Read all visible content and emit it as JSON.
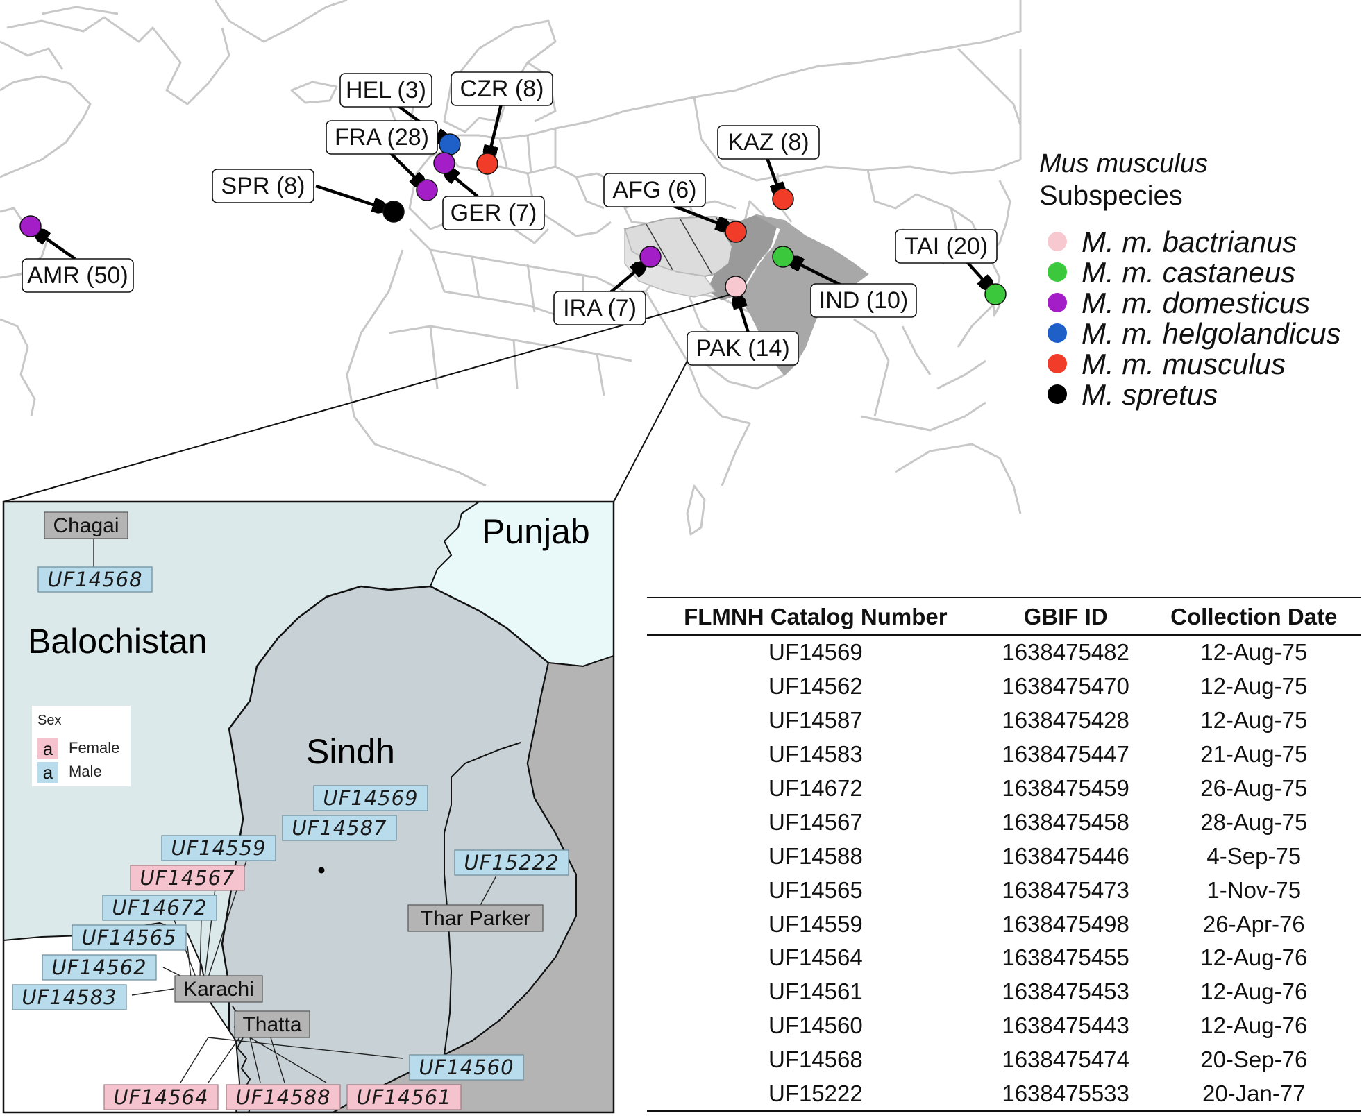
{
  "legend": {
    "title_italic": "Mus musculus",
    "title": "Subspecies",
    "items": [
      {
        "label": "M. m. bactrianus",
        "color": "#f8c8d0"
      },
      {
        "label": "M. m. castaneus",
        "color": "#3cc83c"
      },
      {
        "label": "M. m. domesticus",
        "color": "#a41ec8"
      },
      {
        "label": "M. m. helgolandicus",
        "color": "#1f5fc8"
      },
      {
        "label": "M. m. musculus",
        "color": "#f03c28"
      },
      {
        "label": "M. spretus",
        "color": "#000000"
      }
    ]
  },
  "sites": [
    {
      "label": "HEL (3)",
      "subspecies": "M. m. helgolandicus"
    },
    {
      "label": "CZR (8)",
      "subspecies": "M. m. musculus"
    },
    {
      "label": "FRA (28)",
      "subspecies": "M. m. domesticus"
    },
    {
      "label": "KAZ (8)",
      "subspecies": "M. m. musculus"
    },
    {
      "label": "SPR (8)",
      "subspecies": "M. spretus"
    },
    {
      "label": "GER (7)",
      "subspecies": "M. m. domesticus"
    },
    {
      "label": "AFG (6)",
      "subspecies": "M. m. musculus"
    },
    {
      "label": "TAI (20)",
      "subspecies": "M. m. castaneus"
    },
    {
      "label": "AMR (50)",
      "subspecies": "M. m. domesticus"
    },
    {
      "label": "IRA (7)",
      "subspecies": "M. m. domesticus"
    },
    {
      "label": "IND (10)",
      "subspecies": "M. m. castaneus"
    },
    {
      "label": "PAK (14)",
      "subspecies": "M. m. bactrianus"
    }
  ],
  "inset": {
    "provinces": [
      "Punjab",
      "Balochistan",
      "Sindh"
    ],
    "sex_legend": {
      "title": "Sex",
      "glyph": "a",
      "items": [
        {
          "label": "Female",
          "color": "#f4c3cd"
        },
        {
          "label": "Male",
          "color": "#b8dcec"
        }
      ]
    },
    "districts": [
      "Chagai",
      "Karachi",
      "Thatta",
      "Thar Parker"
    ],
    "specimens": [
      {
        "id": "UF14568",
        "sex": "Male"
      },
      {
        "id": "UF14569",
        "sex": "Male"
      },
      {
        "id": "UF14587",
        "sex": "Male"
      },
      {
        "id": "UF14559",
        "sex": "Male"
      },
      {
        "id": "UF14567",
        "sex": "Female"
      },
      {
        "id": "UF15222",
        "sex": "Male"
      },
      {
        "id": "UF14672",
        "sex": "Male"
      },
      {
        "id": "UF14565",
        "sex": "Male"
      },
      {
        "id": "UF14562",
        "sex": "Male"
      },
      {
        "id": "UF14583",
        "sex": "Male"
      },
      {
        "id": "UF14560",
        "sex": "Male"
      },
      {
        "id": "UF14564",
        "sex": "Female"
      },
      {
        "id": "UF14588",
        "sex": "Female"
      },
      {
        "id": "UF14561",
        "sex": "Female"
      }
    ]
  },
  "table": {
    "headers": [
      "FLMNH Catalog Number",
      "GBIF ID",
      "Collection Date"
    ],
    "rows": [
      [
        "UF14569",
        "1638475482",
        "12-Aug-75"
      ],
      [
        "UF14562",
        "1638475470",
        "12-Aug-75"
      ],
      [
        "UF14587",
        "1638475428",
        "12-Aug-75"
      ],
      [
        "UF14583",
        "1638475447",
        "21-Aug-75"
      ],
      [
        "UF14672",
        "1638475459",
        "26-Aug-75"
      ],
      [
        "UF14567",
        "1638475458",
        "28-Aug-75"
      ],
      [
        "UF14588",
        "1638475446",
        "4-Sep-75"
      ],
      [
        "UF14565",
        "1638475473",
        "1-Nov-75"
      ],
      [
        "UF14559",
        "1638475498",
        "26-Apr-76"
      ],
      [
        "UF14564",
        "1638475455",
        "12-Aug-76"
      ],
      [
        "UF14561",
        "1638475453",
        "12-Aug-76"
      ],
      [
        "UF14560",
        "1638475443",
        "12-Aug-76"
      ],
      [
        "UF14568",
        "1638475474",
        "20-Sep-76"
      ],
      [
        "UF15222",
        "1638475533",
        "20-Jan-77"
      ]
    ]
  }
}
